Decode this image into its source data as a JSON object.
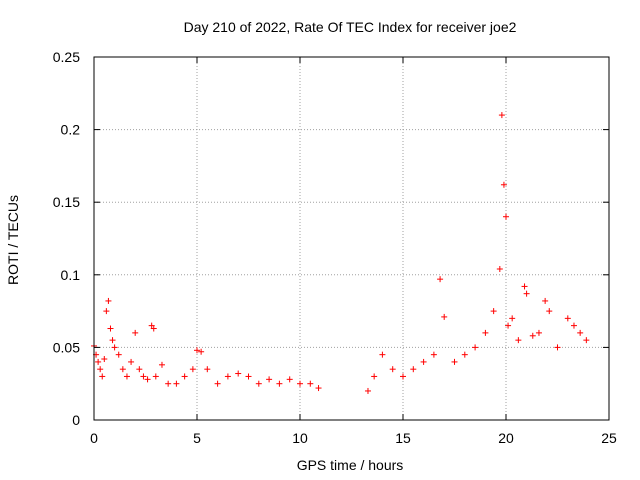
{
  "chart_data": {
    "type": "scatter",
    "title": "Day 210 of 2022, Rate Of TEC Index for receiver joe2",
    "xlabel": "GPS time / hours",
    "ylabel": "ROTI / TECUs",
    "xlim": [
      0,
      25
    ],
    "ylim": [
      0,
      0.25
    ],
    "xticks": [
      0,
      5,
      10,
      15,
      20,
      25
    ],
    "yticks": [
      0,
      0.05,
      0.1,
      0.15,
      0.2,
      0.25
    ],
    "xtick_labels": [
      "0",
      "5",
      "10",
      "15",
      "20",
      "25"
    ],
    "ytick_labels": [
      "0",
      "0.05",
      "0.1",
      "0.15",
      "0.2",
      "0.25"
    ],
    "grid": true,
    "marker": "+",
    "color": "#ff0000",
    "series": [
      {
        "x": [
          0.0,
          0.1,
          0.2,
          0.3,
          0.4,
          0.5,
          0.6,
          0.7,
          0.8,
          0.9,
          1.0,
          1.2,
          1.4,
          1.6,
          1.8,
          2.0,
          2.2,
          2.4,
          2.6,
          2.8,
          2.9,
          3.0,
          3.3,
          3.6,
          4.0,
          4.4,
          4.8,
          5.0,
          5.2,
          5.5,
          6.0,
          6.5,
          7.0,
          7.5,
          8.0,
          8.5,
          9.0,
          9.5,
          10.0,
          10.5,
          10.9,
          13.3,
          13.6,
          14.0,
          14.5,
          15.0,
          15.5,
          16.0,
          16.5,
          16.8,
          17.0,
          17.5,
          18.0,
          18.5,
          19.0,
          19.4,
          19.7,
          19.8,
          19.9,
          20.0,
          20.1,
          20.3,
          20.6,
          20.9,
          21.0,
          21.3,
          21.6,
          21.9,
          22.1,
          22.5,
          23.0,
          23.3,
          23.6,
          23.9
        ],
        "y": [
          0.051,
          0.045,
          0.04,
          0.035,
          0.03,
          0.042,
          0.075,
          0.082,
          0.063,
          0.055,
          0.05,
          0.045,
          0.035,
          0.03,
          0.04,
          0.06,
          0.035,
          0.03,
          0.028,
          0.065,
          0.063,
          0.03,
          0.038,
          0.025,
          0.025,
          0.03,
          0.035,
          0.048,
          0.047,
          0.035,
          0.025,
          0.03,
          0.032,
          0.03,
          0.025,
          0.028,
          0.025,
          0.028,
          0.025,
          0.025,
          0.022,
          0.02,
          0.03,
          0.045,
          0.035,
          0.03,
          0.035,
          0.04,
          0.045,
          0.097,
          0.071,
          0.04,
          0.045,
          0.05,
          0.06,
          0.075,
          0.104,
          0.21,
          0.162,
          0.14,
          0.065,
          0.07,
          0.055,
          0.092,
          0.087,
          0.058,
          0.06,
          0.082,
          0.075,
          0.05,
          0.07,
          0.065,
          0.06,
          0.055
        ]
      }
    ]
  }
}
